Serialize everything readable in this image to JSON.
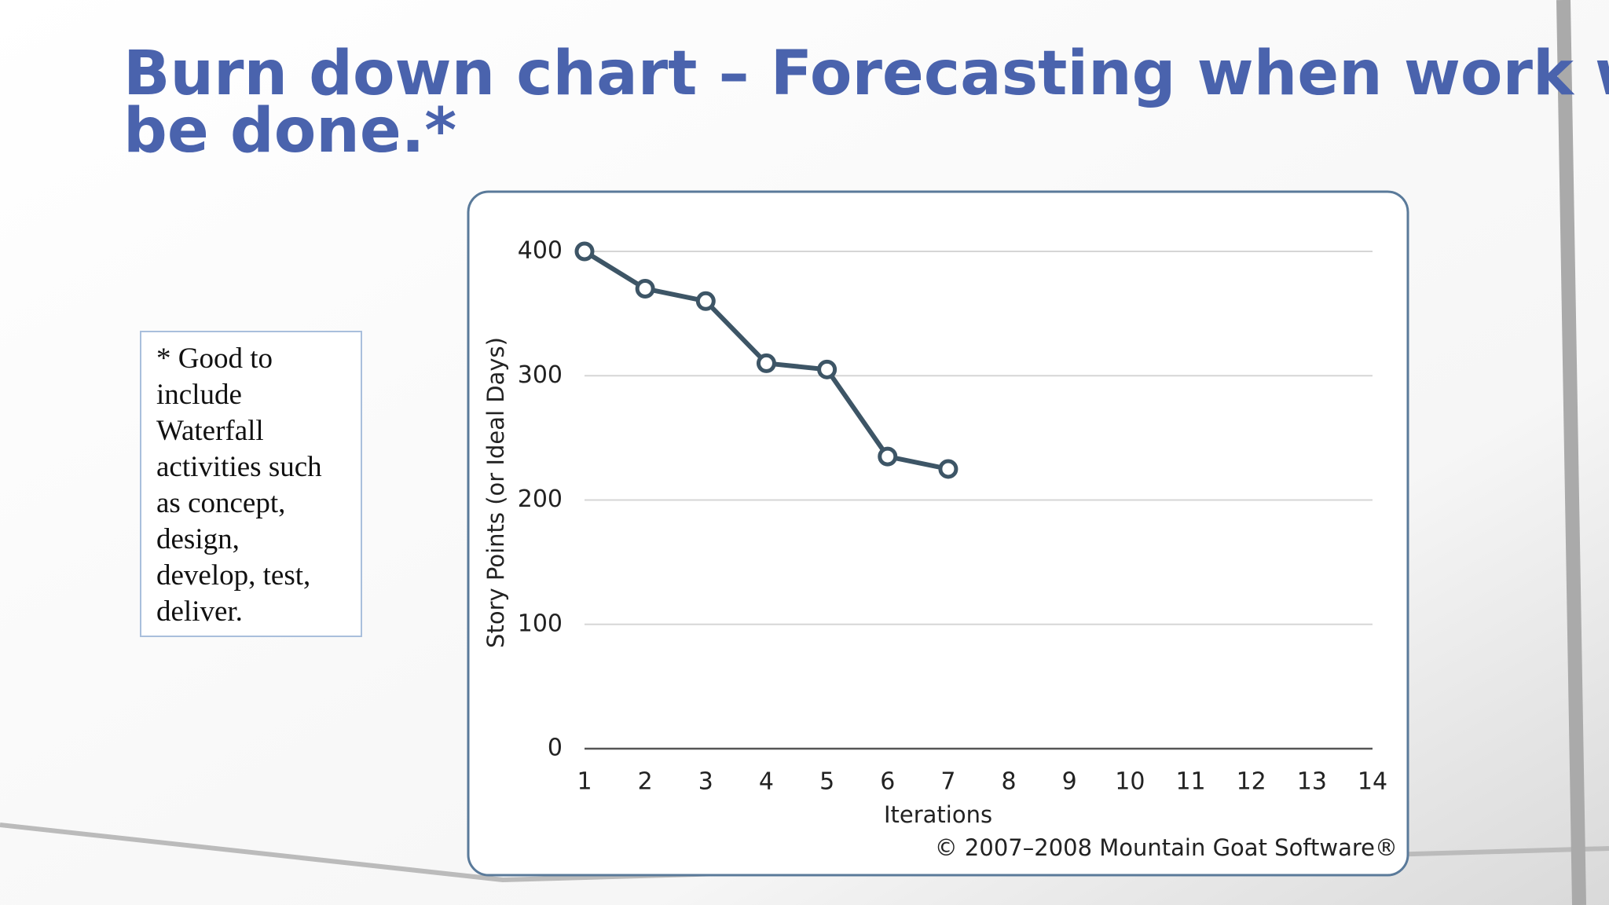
{
  "slide": {
    "title_lines": [
      "Burn down chart – Forecasting when work will",
      "be done.*"
    ]
  },
  "note": {
    "lines": [
      "* Good to",
      "include",
      "Waterfall",
      "activities such",
      "as concept,",
      "design,",
      "develop, test,",
      "deliver."
    ]
  },
  "chart_data": {
    "type": "line",
    "x": [
      1,
      2,
      3,
      4,
      5,
      6,
      7
    ],
    "series": [
      {
        "name": "Story Points",
        "color": "#3d5566",
        "values": [
          400,
          370,
          360,
          310,
          305,
          235,
          225
        ]
      }
    ],
    "xlim": [
      1,
      14
    ],
    "xticks": [
      1,
      2,
      3,
      4,
      5,
      6,
      7,
      8,
      9,
      10,
      11,
      12,
      13,
      14
    ],
    "ylim": [
      0,
      400
    ],
    "yticks": [
      0,
      100,
      200,
      300,
      400
    ],
    "grid": true,
    "xlabel": "Iterations",
    "ylabel": "Story Points (or Ideal Days)",
    "annotation": "© 2007–2008 Mountain Goat Software®"
  }
}
